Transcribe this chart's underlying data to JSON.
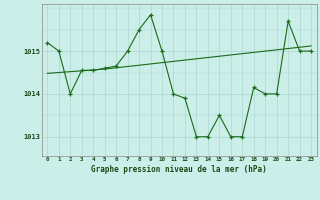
{
  "x": [
    0,
    1,
    2,
    3,
    4,
    5,
    6,
    7,
    8,
    9,
    10,
    11,
    12,
    13,
    14,
    15,
    16,
    17,
    18,
    19,
    20,
    21,
    22,
    23
  ],
  "y_main": [
    1015.2,
    1015.0,
    1014.0,
    1014.55,
    1014.55,
    1014.6,
    1014.65,
    1015.0,
    1015.5,
    1015.85,
    1015.0,
    1014.0,
    1013.9,
    1013.0,
    1013.0,
    1013.5,
    1013.0,
    1013.0,
    1014.15,
    1014.0,
    1014.0,
    1015.7,
    1015.0,
    1015.0
  ],
  "y_trend": [
    1014.48,
    1014.5,
    1014.52,
    1014.54,
    1014.56,
    1014.58,
    1014.61,
    1014.64,
    1014.67,
    1014.7,
    1014.73,
    1014.76,
    1014.79,
    1014.82,
    1014.85,
    1014.88,
    1014.91,
    1014.94,
    1014.97,
    1015.0,
    1015.03,
    1015.06,
    1015.09,
    1015.12
  ],
  "line_color": "#1a6b1a",
  "bg_color": "#cceee8",
  "grid_color": "#aad8d0",
  "xlabel": "Graphe pression niveau de la mer (hPa)",
  "yticks": [
    1013,
    1014,
    1015
  ],
  "xticks": [
    0,
    1,
    2,
    3,
    4,
    5,
    6,
    7,
    8,
    9,
    10,
    11,
    12,
    13,
    14,
    15,
    16,
    17,
    18,
    19,
    20,
    21,
    22,
    23
  ],
  "ylim": [
    1012.55,
    1016.1
  ],
  "xlim": [
    -0.5,
    23.5
  ]
}
